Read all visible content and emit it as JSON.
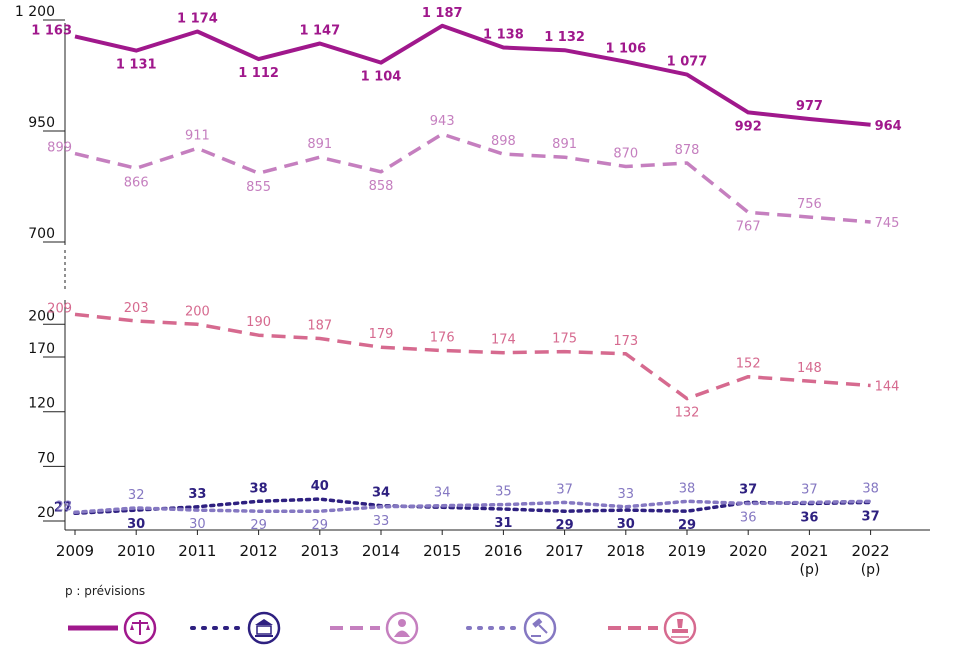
{
  "chart_data": {
    "type": "line",
    "categories": [
      "2009",
      "2010",
      "2011",
      "2012",
      "2013",
      "2014",
      "2015",
      "2016",
      "2017",
      "2018",
      "2019",
      "2020",
      "2021",
      "2022"
    ],
    "category_sublabels": [
      "",
      "",
      "",
      "",
      "",
      "",
      "",
      "",
      "",
      "",
      "",
      "",
      "(p)",
      "(p)"
    ],
    "axis_broken": true,
    "y_ticks_upper": [
      "700",
      "950",
      "1 200"
    ],
    "y_ticks_lower": [
      "20",
      "70",
      "120",
      "170",
      "200"
    ],
    "grid": false,
    "legend_placement": "bottom",
    "series": [
      {
        "icon": "scales-of-justice-icon",
        "color": "#a0188c",
        "style": "solid",
        "values": [
          1163,
          1131,
          1174,
          1112,
          1147,
          1104,
          1187,
          1138,
          1132,
          1106,
          1077,
          992,
          977,
          964
        ],
        "labels": [
          "1 163",
          "1 131",
          "1 174",
          "1 112",
          "1 147",
          "1 104",
          "1 187",
          "1 138",
          "1 132",
          "1 106",
          "1 077",
          "992",
          "977",
          "964"
        ]
      },
      {
        "icon": "court-building-icon",
        "color": "#2e2080",
        "style": "dotted",
        "values": [
          27,
          30,
          33,
          38,
          40,
          34,
          null,
          31,
          29,
          30,
          29,
          37,
          36,
          37
        ],
        "labels": [
          "27",
          "30",
          "33",
          "38",
          "40",
          "34",
          "",
          "31",
          "29",
          "30",
          "29",
          "37",
          "36",
          "37"
        ]
      },
      {
        "icon": "person-icon",
        "color": "#c57fbf",
        "style": "dashed",
        "values": [
          899,
          866,
          911,
          855,
          891,
          858,
          943,
          898,
          891,
          870,
          878,
          767,
          756,
          745
        ],
        "labels": [
          "899",
          "866",
          "911",
          "855",
          "891",
          "858",
          "943",
          "898",
          "891",
          "870",
          "878",
          "767",
          "756",
          "745"
        ]
      },
      {
        "icon": "gavel-icon",
        "color": "#8578c2",
        "style": "dotted",
        "values": [
          28,
          32,
          30,
          29,
          29,
          33,
          34,
          35,
          37,
          33,
          38,
          36,
          37,
          38
        ],
        "labels": [
          "28",
          "32",
          "30",
          "29",
          "29",
          "33",
          "34",
          "35",
          "37",
          "33",
          "38",
          "36",
          "37",
          "38"
        ]
      },
      {
        "icon": "stamp-icon",
        "color": "#d66a8f",
        "style": "dashed",
        "values": [
          209,
          203,
          200,
          190,
          187,
          179,
          176,
          174,
          175,
          173,
          132,
          152,
          148,
          144
        ],
        "labels": [
          "209",
          "203",
          "200",
          "190",
          "187",
          "179",
          "176",
          "174",
          "175",
          "173",
          "132",
          "152",
          "148",
          "144"
        ]
      }
    ]
  },
  "footnote": "p : prévisions"
}
